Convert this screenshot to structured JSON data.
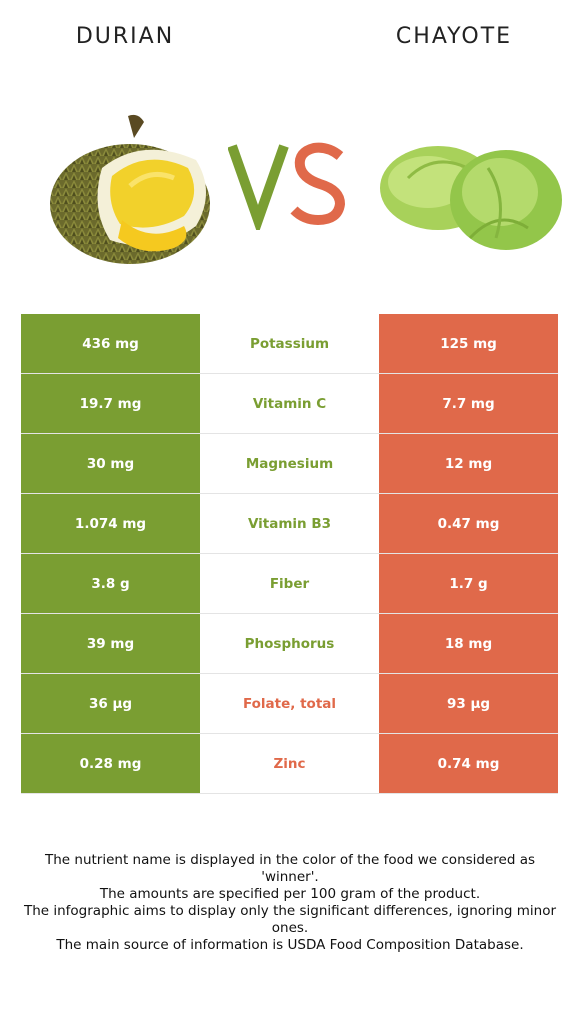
{
  "header": {
    "left_food": "DURIAN",
    "right_food": "CHAYOTE",
    "vs_text": "VS"
  },
  "colors": {
    "durian": "#7a9e32",
    "chayote": "#e0694a"
  },
  "rows": [
    {
      "nutrient": "Potassium",
      "durian": "436 mg",
      "chayote": "125 mg",
      "winner": "durian"
    },
    {
      "nutrient": "Vitamin C",
      "durian": "19.7 mg",
      "chayote": "7.7 mg",
      "winner": "durian"
    },
    {
      "nutrient": "Magnesium",
      "durian": "30 mg",
      "chayote": "12 mg",
      "winner": "durian"
    },
    {
      "nutrient": "Vitamin B3",
      "durian": "1.074 mg",
      "chayote": "0.47 mg",
      "winner": "durian"
    },
    {
      "nutrient": "Fiber",
      "durian": "3.8 g",
      "chayote": "1.7 g",
      "winner": "durian"
    },
    {
      "nutrient": "Phosphorus",
      "durian": "39 mg",
      "chayote": "18 mg",
      "winner": "durian"
    },
    {
      "nutrient": "Folate, total",
      "durian": "36 µg",
      "chayote": "93 µg",
      "winner": "chayote"
    },
    {
      "nutrient": "Zinc",
      "durian": "0.28 mg",
      "chayote": "0.74 mg",
      "winner": "chayote"
    }
  ],
  "notes": [
    "The nutrient name is displayed in the color of the food we considered as 'winner'.",
    "The amounts are specified per 100 gram of the product.",
    "The infographic aims to display only the significant differences, ignoring minor ones.",
    "The main source of information is USDA Food Composition Database."
  ]
}
